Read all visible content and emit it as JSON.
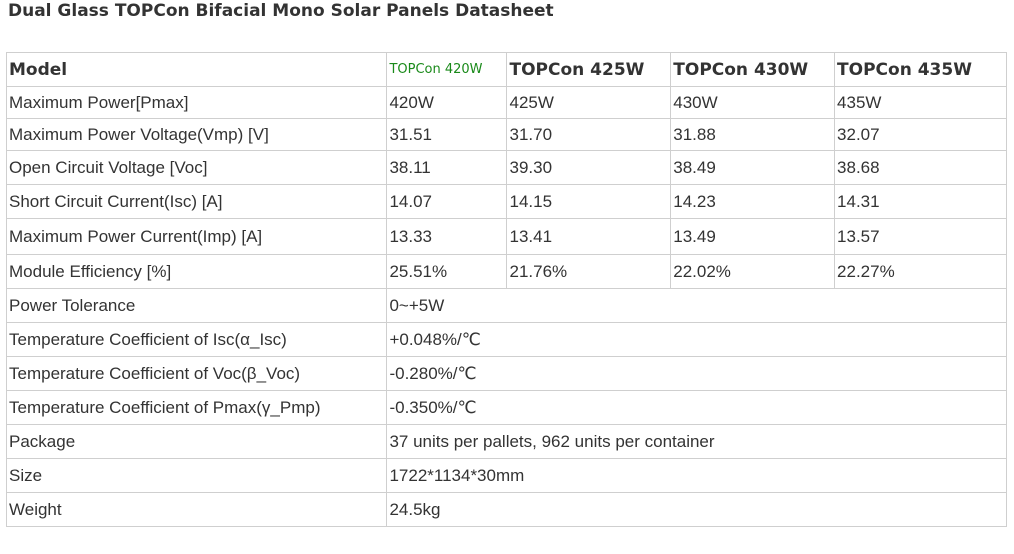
{
  "page_title": "Dual Glass TOPCon Bifacial Mono Solar Panels Datasheet",
  "table": {
    "header": {
      "label": "Model",
      "models": [
        "TOPCon 420W",
        "TOPCon 425W",
        "TOPCon 430W",
        "TOPCon 435W"
      ]
    },
    "per_model_rows": [
      {
        "label": "Maximum Power[Pmax]",
        "values": [
          "420W",
          "425W",
          "430W",
          "435W"
        ]
      },
      {
        "label": "Maximum Power Voltage(Vmp) [V]",
        "values": [
          "31.51",
          "31.70",
          "31.88",
          "32.07"
        ]
      },
      {
        "label": "Open Circuit Voltage [Voc]",
        "values": [
          "38.11",
          "39.30",
          "38.49",
          "38.68"
        ]
      },
      {
        "label": "Short Circuit Current(Isc) [A]",
        "values": [
          "14.07",
          "14.15",
          "14.23",
          "14.31"
        ]
      },
      {
        "label": "Maximum Power Current(Imp) [A]",
        "values": [
          "13.33",
          "13.41",
          "13.49",
          "13.57"
        ]
      },
      {
        "label": "Module Efficiency [%]",
        "values": [
          "25.51%",
          "21.76%",
          "22.02%",
          "22.27%"
        ]
      }
    ],
    "shared_rows": [
      {
        "label": "Power Tolerance",
        "value": "0~+5W"
      },
      {
        "label": "Temperature Coefficient of Isc(α_Isc)",
        "value": "+0.048%/℃"
      },
      {
        "label": "Temperature Coefficient of Voc(β_Voc)",
        "value": "-0.280%/℃"
      },
      {
        "label": "Temperature Coefficient of Pmax(γ_Pmp)",
        "value": "-0.350%/℃"
      },
      {
        "label": "Package",
        "value": "37 units per pallets, 962 units per container"
      },
      {
        "label": "Size",
        "value": "1722*1134*30mm"
      },
      {
        "label": "Weight",
        "value": "24.5kg"
      }
    ]
  }
}
